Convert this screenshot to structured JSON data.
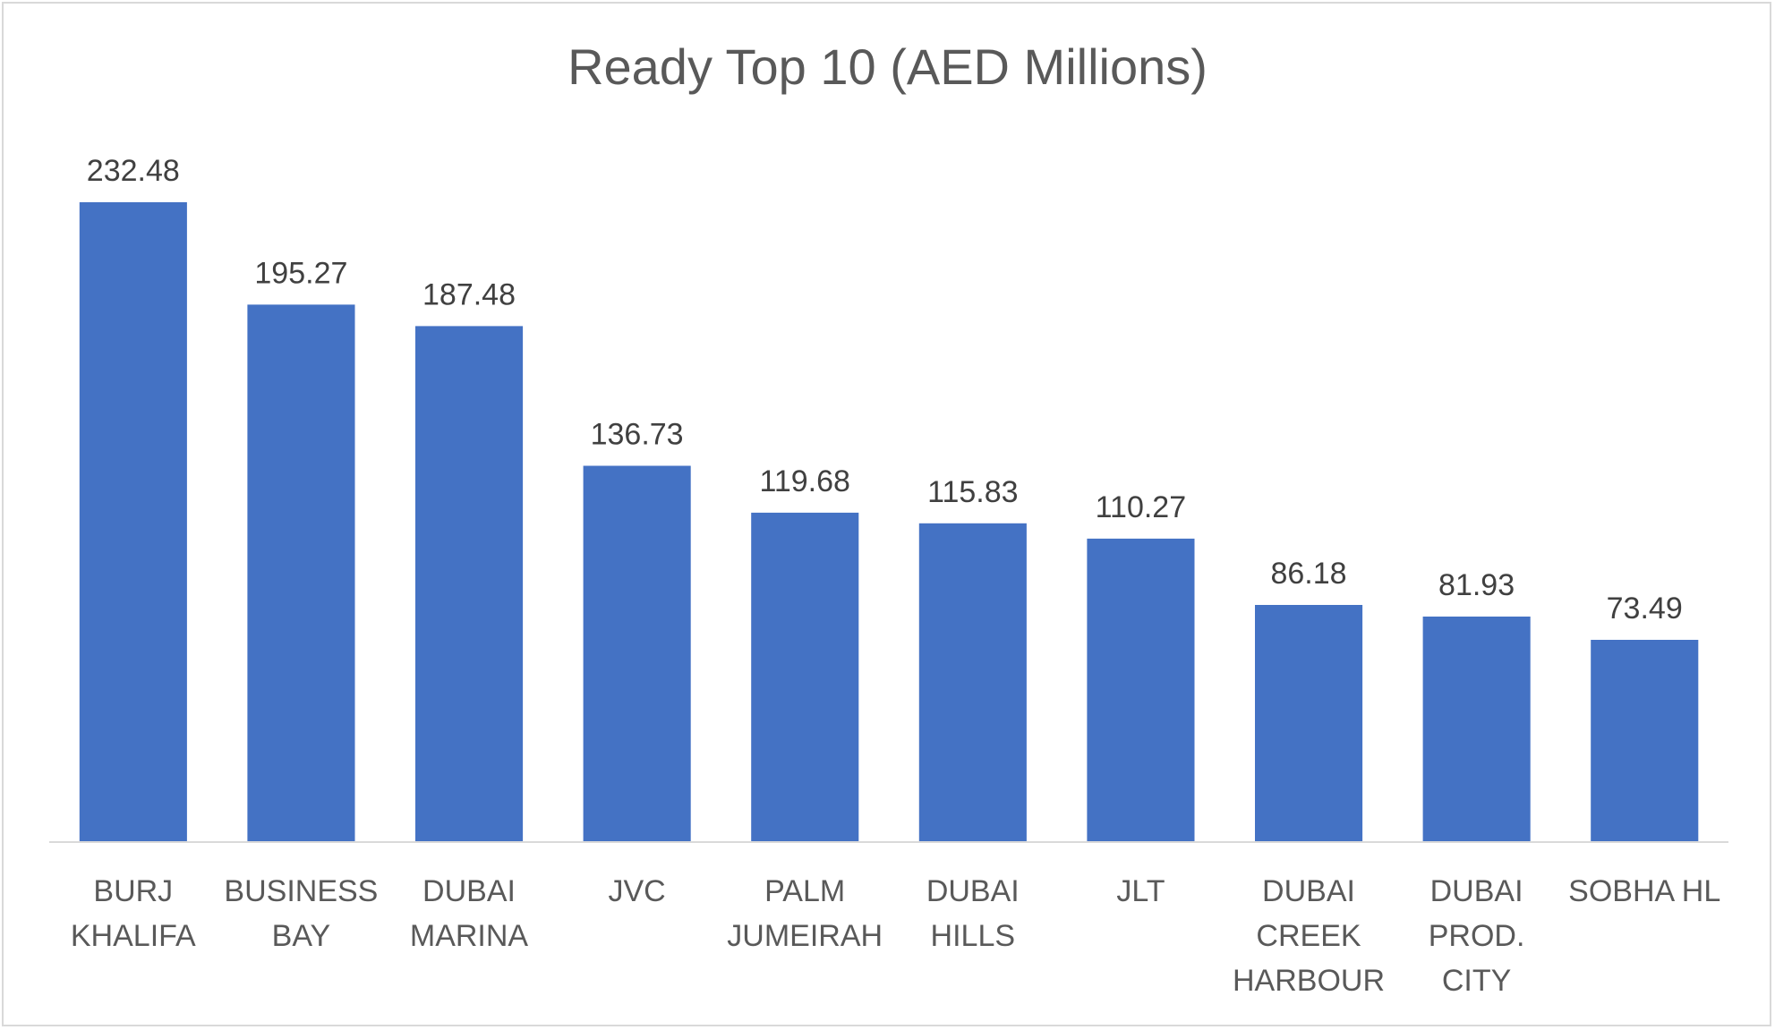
{
  "chart_data": {
    "type": "bar",
    "title": "Ready Top 10 (AED Millions)",
    "categories": [
      [
        "BURJ",
        "KHALIFA"
      ],
      [
        "BUSINESS",
        "BAY"
      ],
      [
        "DUBAI",
        "MARINA"
      ],
      [
        "JVC"
      ],
      [
        "PALM",
        "JUMEIRAH"
      ],
      [
        "DUBAI",
        "HILLS"
      ],
      [
        "JLT"
      ],
      [
        "DUBAI",
        "CREEK",
        "HARBOUR"
      ],
      [
        "DUBAI",
        "PROD.",
        "CITY"
      ],
      [
        "SOBHA HL"
      ]
    ],
    "values": [
      232.48,
      195.27,
      187.48,
      136.73,
      119.68,
      115.83,
      110.27,
      86.18,
      81.93,
      73.49
    ],
    "value_labels": [
      "232.48",
      "195.27",
      "187.48",
      "136.73",
      "119.68",
      "115.83",
      "110.27",
      "86.18",
      "81.93",
      "73.49"
    ],
    "xlabel": "",
    "ylabel": "",
    "ylim": [
      0,
      232.48
    ],
    "grid": false,
    "legend": "none",
    "bar_color": "#4472c4"
  }
}
